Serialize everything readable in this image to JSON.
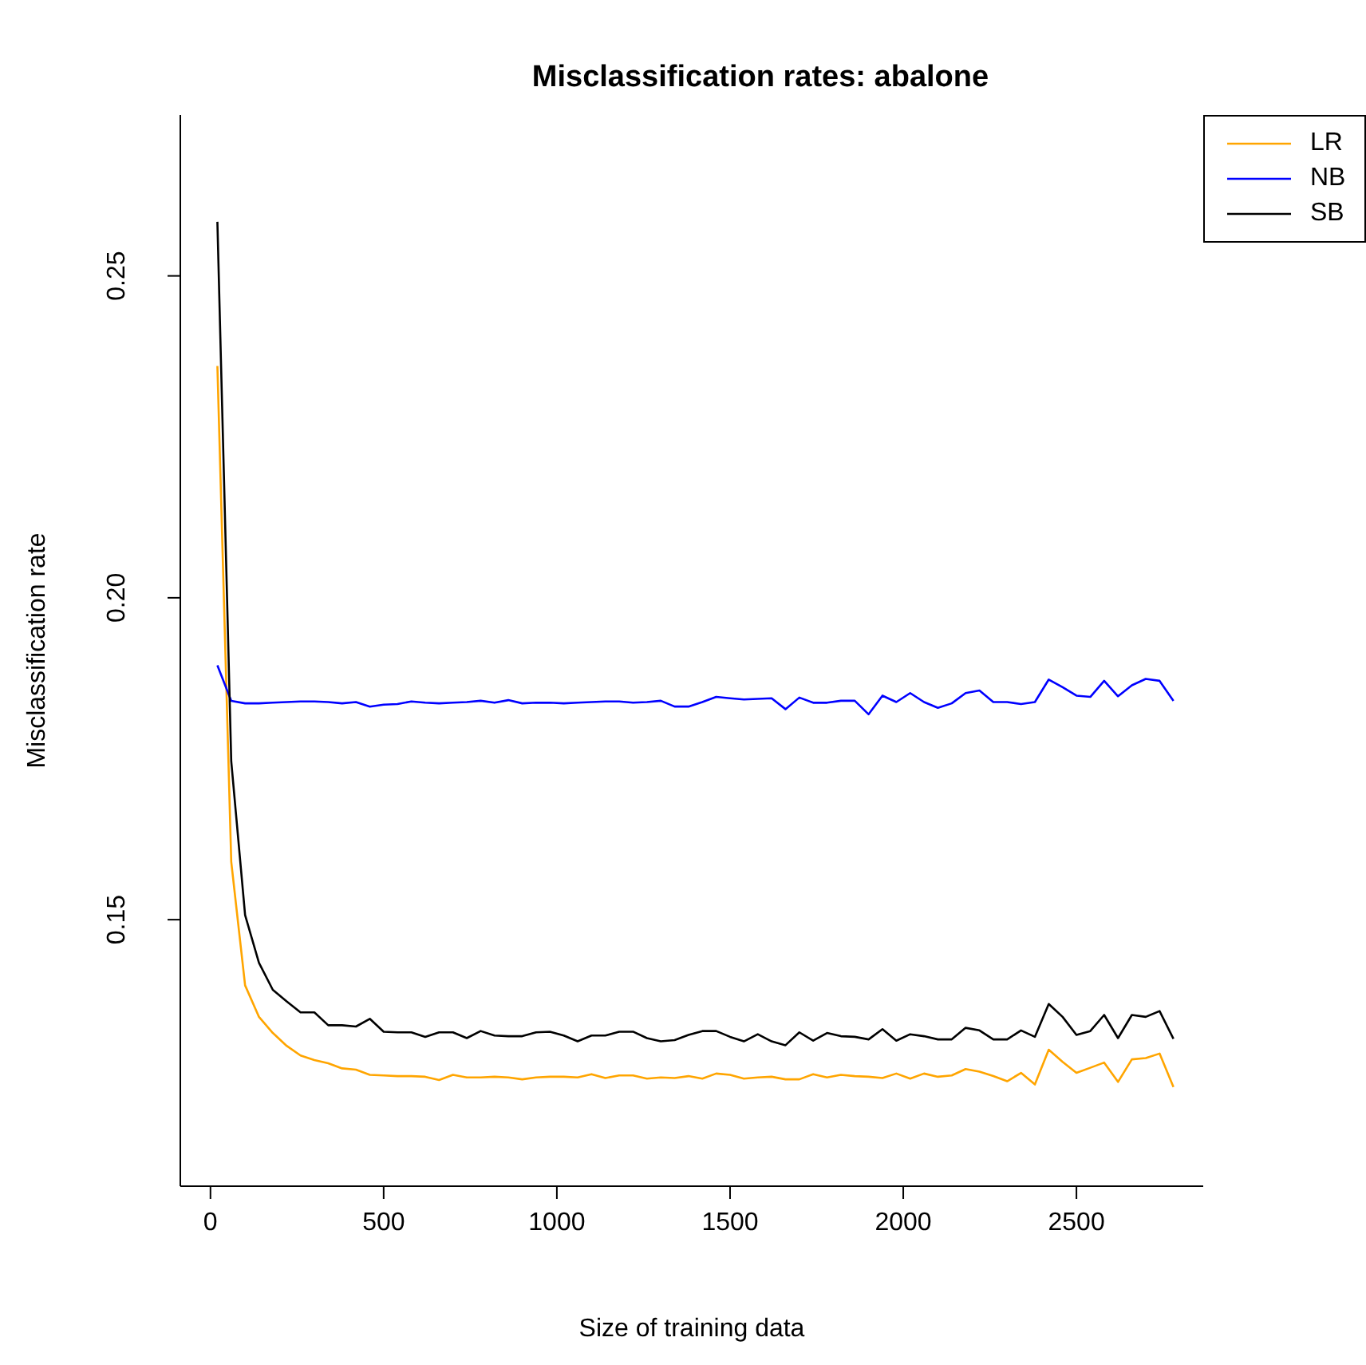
{
  "chart_data": {
    "type": "line",
    "title": "Misclassification rates: abalone",
    "xlabel": "Size of training data",
    "ylabel": "Misclassification rate",
    "x": [
      20,
      60,
      100,
      140,
      180,
      220,
      260,
      300,
      340,
      380,
      420,
      460,
      500,
      540,
      580,
      620,
      660,
      700,
      740,
      780,
      820,
      860,
      900,
      940,
      980,
      1020,
      1060,
      1100,
      1140,
      1180,
      1220,
      1260,
      1300,
      1340,
      1380,
      1420,
      1460,
      1500,
      1540,
      1580,
      1620,
      1660,
      1700,
      1740,
      1780,
      1820,
      1860,
      1900,
      1940,
      1980,
      2020,
      2060,
      2100,
      2140,
      2180,
      2220,
      2260,
      2300,
      2340,
      2380,
      2420,
      2460,
      2500,
      2540,
      2580,
      2620,
      2660,
      2700,
      2740,
      2780
    ],
    "series": [
      {
        "name": "LR",
        "color": "#ffa500",
        "values": [
          0.236,
          0.159,
          0.1398,
          0.1349,
          0.1324,
          0.1304,
          0.1289,
          0.1282,
          0.1277,
          0.1269,
          0.1267,
          0.1259,
          0.1258,
          0.1257,
          0.1257,
          0.1256,
          0.1251,
          0.1259,
          0.1255,
          0.1255,
          0.1256,
          0.1255,
          0.1252,
          0.1255,
          0.1256,
          0.1256,
          0.1255,
          0.126,
          0.1254,
          0.1258,
          0.1258,
          0.1253,
          0.1255,
          0.1254,
          0.1257,
          0.1253,
          0.1261,
          0.1259,
          0.1253,
          0.1255,
          0.1256,
          0.1252,
          0.1252,
          0.126,
          0.1255,
          0.1259,
          0.1257,
          0.1256,
          0.1254,
          0.1261,
          0.1253,
          0.1261,
          0.1256,
          0.1258,
          0.1268,
          0.1264,
          0.1257,
          0.1249,
          0.1262,
          0.1244,
          0.1298,
          0.1279,
          0.1262,
          0.127,
          0.1278,
          0.1248,
          0.1283,
          0.1285,
          0.1292,
          0.124
        ]
      },
      {
        "name": "NB",
        "color": "#0000ff",
        "values": [
          0.1895,
          0.184,
          0.1836,
          0.1836,
          0.1837,
          0.1838,
          0.1839,
          0.1839,
          0.1838,
          0.1836,
          0.1838,
          0.1831,
          0.1834,
          0.1835,
          0.1839,
          0.1837,
          0.1836,
          0.1837,
          0.1838,
          0.184,
          0.1837,
          0.1841,
          0.1836,
          0.1837,
          0.1837,
          0.1836,
          0.1837,
          0.1838,
          0.1839,
          0.1839,
          0.1837,
          0.1838,
          0.184,
          0.1831,
          0.1831,
          0.1838,
          0.1846,
          0.1844,
          0.1842,
          0.1843,
          0.1844,
          0.1827,
          0.1845,
          0.1837,
          0.1837,
          0.184,
          0.184,
          0.1819,
          0.1848,
          0.1838,
          0.1852,
          0.1838,
          0.1829,
          0.1836,
          0.1852,
          0.1856,
          0.1838,
          0.1838,
          0.1835,
          0.1838,
          0.1873,
          0.1861,
          0.1848,
          0.1846,
          0.1871,
          0.1847,
          0.1864,
          0.1874,
          0.1871,
          0.184
        ]
      },
      {
        "name": "SB",
        "color": "#000000",
        "values": [
          0.2584,
          0.1746,
          0.1507,
          0.1433,
          0.1391,
          0.1373,
          0.1356,
          0.1356,
          0.1336,
          0.1336,
          0.1334,
          0.1346,
          0.1326,
          0.1325,
          0.1325,
          0.1318,
          0.1325,
          0.1325,
          0.1316,
          0.1327,
          0.132,
          0.1319,
          0.1319,
          0.1325,
          0.1326,
          0.132,
          0.1311,
          0.132,
          0.132,
          0.1326,
          0.1326,
          0.1316,
          0.1311,
          0.1313,
          0.1321,
          0.1327,
          0.1327,
          0.1318,
          0.1311,
          0.1322,
          0.1311,
          0.1305,
          0.1325,
          0.1312,
          0.1324,
          0.1319,
          0.1318,
          0.1314,
          0.133,
          0.1312,
          0.1322,
          0.1319,
          0.1314,
          0.1314,
          0.1332,
          0.1328,
          0.1314,
          0.1314,
          0.1328,
          0.1318,
          0.1369,
          0.1349,
          0.1321,
          0.1327,
          0.1352,
          0.1316,
          0.1352,
          0.1349,
          0.1358,
          0.1315
        ]
      }
    ],
    "xlim": [
      -87,
      2866
    ],
    "xticks": [
      0,
      500,
      1000,
      1500,
      2000,
      2500
    ],
    "ylim": [
      0.1086,
      0.275
    ],
    "yticks": [
      0.15,
      {
        "value": 0.2,
        "label": "0.20"
      },
      0.25
    ],
    "grid": false,
    "legend": "top right",
    "marker": "none",
    "line_style": "solid"
  }
}
